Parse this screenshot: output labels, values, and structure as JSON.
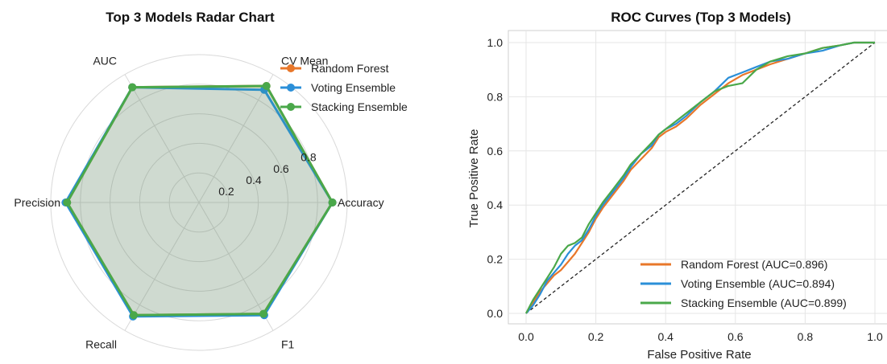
{
  "colors": {
    "random_forest": "#e8772a",
    "voting_ensemble": "#2b8fd8",
    "stacking_ensemble": "#4aa84a",
    "grid": "#d9d9d9",
    "diagonal": "#222222"
  },
  "chart_data": [
    {
      "type": "radar",
      "title": "Top 3 Models Radar Chart",
      "categories": [
        "Accuracy",
        "CV Mean",
        "AUC",
        "Precision",
        "Recall",
        "F1"
      ],
      "rticks": [
        "0.2",
        "0.4",
        "0.6",
        "0.8"
      ],
      "rlim": [
        0,
        1
      ],
      "grid": true,
      "legend_position": "top-right",
      "series": [
        {
          "name": "Random Forest",
          "values": [
            0.9,
            0.91,
            0.9,
            0.89,
            0.88,
            0.87
          ]
        },
        {
          "name": "Voting Ensemble",
          "values": [
            0.9,
            0.88,
            0.9,
            0.9,
            0.89,
            0.88
          ]
        },
        {
          "name": "Stacking Ensemble",
          "values": [
            0.9,
            0.91,
            0.9,
            0.89,
            0.88,
            0.87
          ]
        }
      ]
    },
    {
      "type": "line",
      "title": "ROC Curves (Top 3 Models)",
      "xlabel": "False Positive Rate",
      "ylabel": "True Positive Rate",
      "xlim": [
        0,
        1
      ],
      "ylim": [
        0,
        1
      ],
      "xticks": [
        "0.0",
        "0.2",
        "0.4",
        "0.6",
        "0.8",
        "1.0"
      ],
      "yticks": [
        "0.0",
        "0.2",
        "0.4",
        "0.6",
        "0.8",
        "1.0"
      ],
      "grid": true,
      "legend_position": "lower-right",
      "series": [
        {
          "name": "Random Forest (AUC=0.896)",
          "x": [
            0.0,
            0.02,
            0.04,
            0.06,
            0.08,
            0.1,
            0.12,
            0.14,
            0.16,
            0.18,
            0.2,
            0.22,
            0.25,
            0.28,
            0.3,
            0.33,
            0.36,
            0.38,
            0.4,
            0.43,
            0.46,
            0.5,
            0.54,
            0.58,
            0.62,
            0.66,
            0.7,
            0.75,
            0.8,
            0.85,
            0.9,
            0.94,
            1.0
          ],
          "y": [
            0.0,
            0.04,
            0.08,
            0.11,
            0.14,
            0.16,
            0.19,
            0.22,
            0.26,
            0.3,
            0.35,
            0.39,
            0.44,
            0.49,
            0.53,
            0.57,
            0.61,
            0.65,
            0.67,
            0.69,
            0.72,
            0.77,
            0.81,
            0.85,
            0.88,
            0.9,
            0.92,
            0.94,
            0.96,
            0.98,
            0.99,
            1.0,
            1.0
          ]
        },
        {
          "name": "Voting Ensemble (AUC=0.894)",
          "x": [
            0.0,
            0.02,
            0.04,
            0.06,
            0.08,
            0.1,
            0.12,
            0.14,
            0.16,
            0.18,
            0.2,
            0.22,
            0.25,
            0.28,
            0.3,
            0.33,
            0.36,
            0.38,
            0.4,
            0.43,
            0.46,
            0.5,
            0.54,
            0.58,
            0.62,
            0.66,
            0.7,
            0.75,
            0.8,
            0.85,
            0.9,
            0.94,
            1.0
          ],
          "y": [
            0.0,
            0.03,
            0.07,
            0.12,
            0.15,
            0.18,
            0.22,
            0.25,
            0.27,
            0.31,
            0.36,
            0.4,
            0.45,
            0.5,
            0.54,
            0.59,
            0.62,
            0.66,
            0.68,
            0.7,
            0.73,
            0.78,
            0.82,
            0.87,
            0.89,
            0.91,
            0.93,
            0.94,
            0.96,
            0.97,
            0.99,
            1.0,
            1.0
          ]
        },
        {
          "name": "Stacking Ensemble (AUC=0.899)",
          "x": [
            0.0,
            0.02,
            0.04,
            0.06,
            0.08,
            0.1,
            0.12,
            0.14,
            0.16,
            0.18,
            0.2,
            0.22,
            0.25,
            0.28,
            0.3,
            0.33,
            0.36,
            0.38,
            0.4,
            0.43,
            0.46,
            0.5,
            0.54,
            0.58,
            0.62,
            0.66,
            0.7,
            0.75,
            0.8,
            0.85,
            0.9,
            0.94,
            1.0
          ],
          "y": [
            0.0,
            0.05,
            0.09,
            0.13,
            0.17,
            0.22,
            0.25,
            0.26,
            0.28,
            0.33,
            0.37,
            0.41,
            0.46,
            0.51,
            0.55,
            0.59,
            0.63,
            0.66,
            0.68,
            0.71,
            0.74,
            0.78,
            0.82,
            0.84,
            0.85,
            0.9,
            0.93,
            0.95,
            0.96,
            0.98,
            0.99,
            1.0,
            1.0
          ]
        }
      ]
    }
  ]
}
